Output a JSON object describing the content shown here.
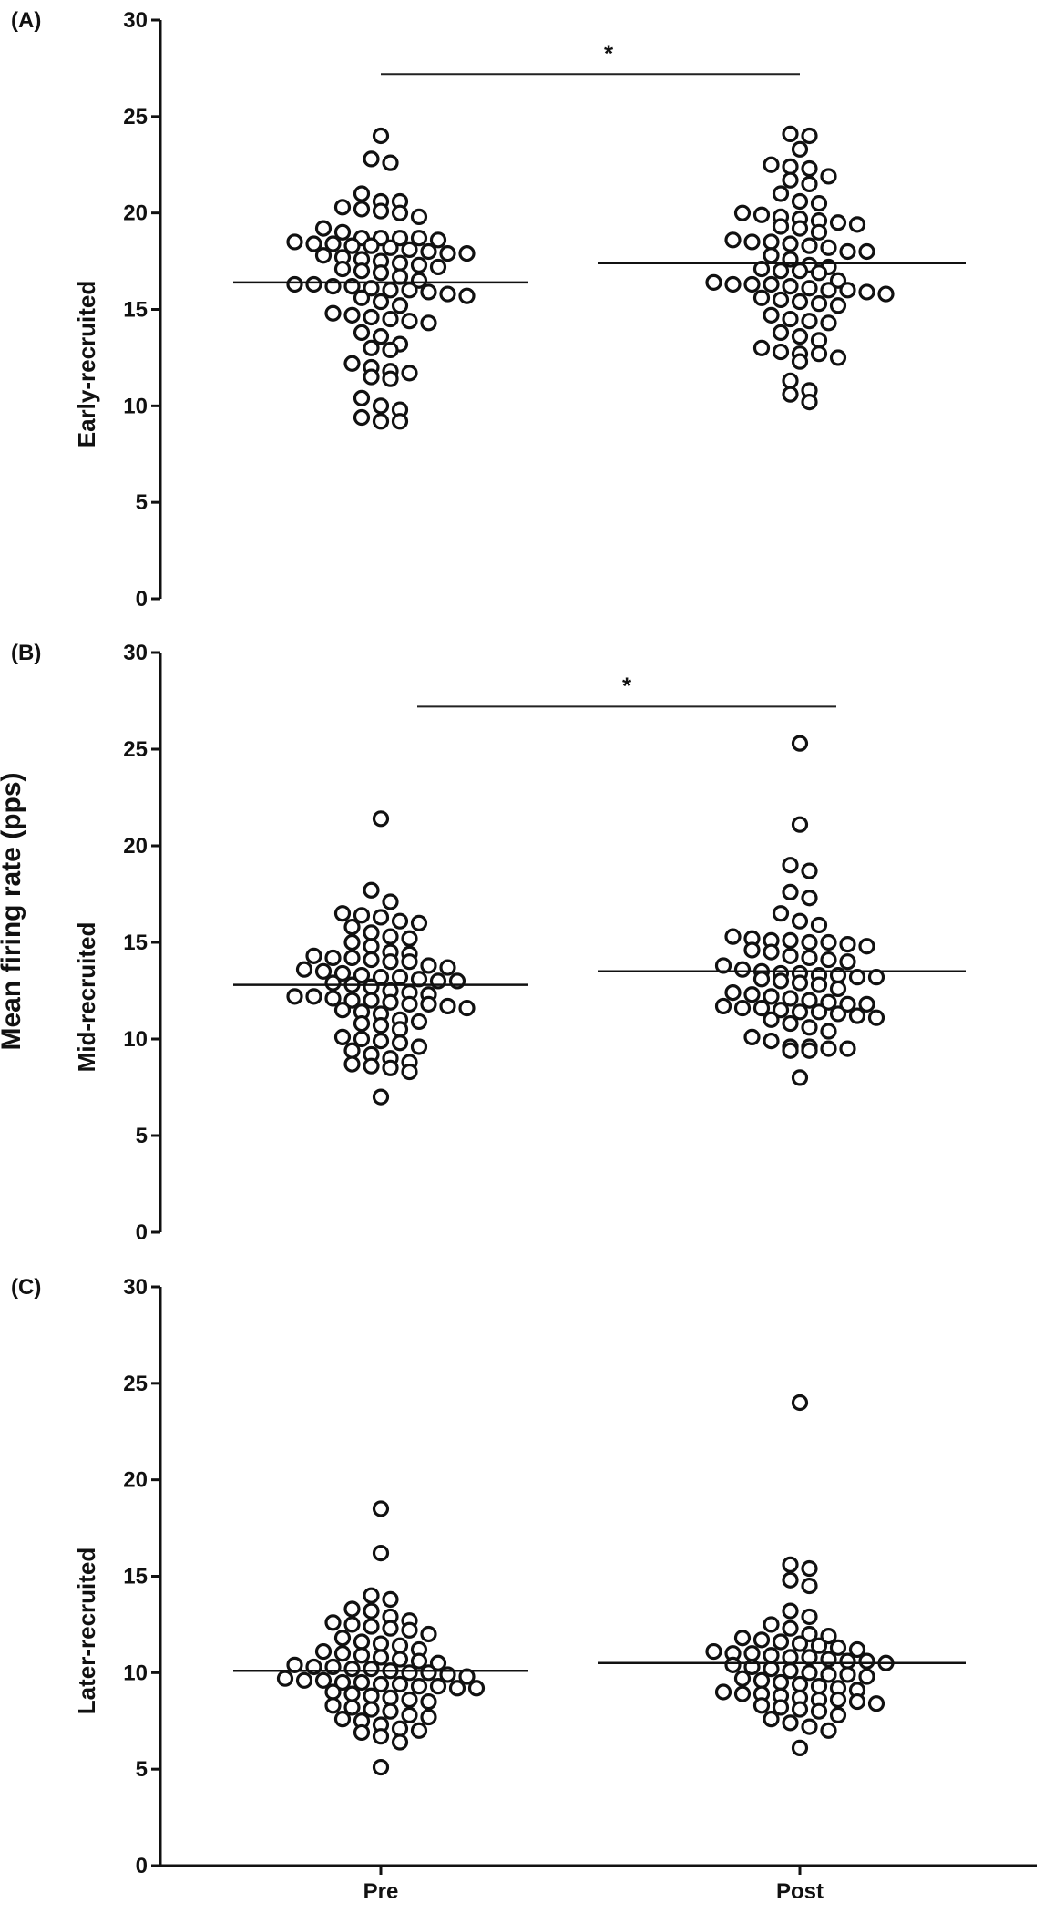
{
  "figure": {
    "shared_ylabel": "Mean firing rate (pps)"
  },
  "chart_data": [
    {
      "type": "scatter",
      "panel": "(A)",
      "ylabel": "Early-recruited",
      "categories": [
        "Pre",
        "Post"
      ],
      "ylim": [
        0,
        30
      ],
      "yticks": [
        0,
        5,
        10,
        15,
        20,
        25,
        30
      ],
      "grid": false,
      "means": [
        16.4,
        17.4
      ],
      "significance": {
        "from": "Pre",
        "to": "Post",
        "y": 27.2,
        "label": "*"
      },
      "series": [
        {
          "values": [
            24.0,
            22.8,
            22.6,
            21.0,
            20.6,
            20.6,
            20.3,
            20.2,
            20.1,
            20.0,
            19.8,
            19.2,
            19.0,
            18.7,
            18.7,
            18.7,
            18.7,
            18.6,
            18.5,
            18.4,
            18.4,
            18.3,
            18.3,
            18.2,
            18.1,
            18.0,
            17.9,
            17.9,
            17.8,
            17.7,
            17.6,
            17.5,
            17.4,
            17.3,
            17.2,
            17.1,
            17.0,
            16.9,
            16.7,
            16.5,
            16.3,
            16.3,
            16.2,
            16.2,
            16.1,
            16.0,
            16.0,
            15.9,
            15.8,
            15.7,
            15.6,
            15.4,
            15.2,
            14.8,
            14.7,
            14.6,
            14.5,
            14.4,
            14.3,
            13.8,
            13.6,
            13.2,
            13.0,
            12.9,
            12.2,
            12.0,
            11.8,
            11.7,
            11.5,
            11.4,
            10.4,
            10.0,
            9.8,
            9.4,
            9.2,
            9.2
          ]
        },
        {
          "values": [
            24.1,
            24.0,
            23.3,
            22.5,
            22.4,
            22.3,
            21.9,
            21.7,
            21.5,
            21.0,
            20.6,
            20.5,
            20.0,
            19.9,
            19.8,
            19.7,
            19.6,
            19.5,
            19.4,
            19.3,
            19.2,
            19.0,
            18.6,
            18.5,
            18.5,
            18.4,
            18.3,
            18.2,
            18.0,
            18.0,
            17.8,
            17.6,
            17.3,
            17.2,
            17.1,
            17.0,
            17.0,
            16.9,
            16.5,
            16.4,
            16.3,
            16.3,
            16.3,
            16.2,
            16.1,
            16.0,
            16.0,
            15.9,
            15.8,
            15.6,
            15.5,
            15.4,
            15.3,
            15.2,
            14.7,
            14.5,
            14.4,
            14.3,
            13.8,
            13.6,
            13.4,
            13.0,
            12.8,
            12.7,
            12.7,
            12.5,
            12.3,
            11.3,
            10.8,
            10.6,
            10.2
          ]
        }
      ]
    },
    {
      "type": "scatter",
      "panel": "(B)",
      "ylabel": "Mid-recruited",
      "categories": [
        "Pre",
        "Post"
      ],
      "ylim": [
        0,
        30
      ],
      "yticks": [
        0,
        5,
        10,
        15,
        20,
        25,
        30
      ],
      "grid": false,
      "means": [
        12.8,
        13.5
      ],
      "significance": {
        "from": "Pre",
        "to": "Post",
        "y": 27.2,
        "label": "*"
      },
      "series": [
        {
          "values": [
            21.4,
            17.7,
            17.1,
            16.5,
            16.4,
            16.3,
            16.1,
            16.0,
            15.8,
            15.5,
            15.3,
            15.2,
            15.0,
            14.8,
            14.5,
            14.4,
            14.3,
            14.2,
            14.2,
            14.1,
            14.0,
            14.0,
            13.8,
            13.7,
            13.6,
            13.5,
            13.4,
            13.3,
            13.2,
            13.2,
            13.1,
            13.0,
            13.0,
            12.9,
            12.8,
            12.7,
            12.5,
            12.4,
            12.3,
            12.2,
            12.2,
            12.1,
            12.0,
            12.0,
            11.9,
            11.8,
            11.8,
            11.7,
            11.6,
            11.5,
            11.4,
            11.3,
            11.0,
            10.9,
            10.8,
            10.7,
            10.5,
            10.1,
            10.0,
            9.9,
            9.8,
            9.6,
            9.4,
            9.2,
            9.0,
            8.8,
            8.7,
            8.6,
            8.5,
            8.3,
            7.0
          ]
        },
        {
          "values": [
            25.3,
            21.1,
            19.0,
            18.7,
            17.6,
            17.3,
            16.5,
            16.1,
            15.9,
            15.3,
            15.2,
            15.1,
            15.1,
            15.0,
            15.0,
            14.9,
            14.8,
            14.6,
            14.5,
            14.3,
            14.2,
            14.1,
            14.0,
            13.8,
            13.6,
            13.5,
            13.4,
            13.4,
            13.3,
            13.3,
            13.2,
            13.2,
            13.1,
            13.0,
            12.9,
            12.8,
            12.6,
            12.4,
            12.3,
            12.2,
            12.1,
            12.0,
            11.9,
            11.8,
            11.8,
            11.7,
            11.6,
            11.6,
            11.5,
            11.4,
            11.4,
            11.3,
            11.2,
            11.1,
            11.0,
            10.8,
            10.6,
            10.4,
            10.1,
            9.9,
            9.6,
            9.6,
            9.5,
            9.5,
            9.4,
            9.4,
            8.0
          ]
        }
      ]
    },
    {
      "type": "scatter",
      "panel": "(C)",
      "ylabel": "Later-recruited",
      "categories": [
        "Pre",
        "Post"
      ],
      "ylim": [
        0,
        30
      ],
      "yticks": [
        0,
        5,
        10,
        15,
        20,
        25,
        30
      ],
      "grid": false,
      "means": [
        10.1,
        10.5
      ],
      "significance": null,
      "series": [
        {
          "values": [
            18.5,
            16.2,
            14.0,
            13.8,
            13.3,
            13.2,
            12.9,
            12.7,
            12.6,
            12.5,
            12.4,
            12.3,
            12.2,
            12.0,
            11.8,
            11.6,
            11.5,
            11.4,
            11.2,
            11.1,
            11.0,
            10.9,
            10.8,
            10.7,
            10.6,
            10.5,
            10.4,
            10.3,
            10.3,
            10.2,
            10.2,
            10.1,
            10.0,
            10.0,
            9.9,
            9.8,
            9.7,
            9.6,
            9.6,
            9.5,
            9.5,
            9.4,
            9.4,
            9.3,
            9.3,
            9.2,
            9.2,
            9.0,
            8.9,
            8.8,
            8.7,
            8.6,
            8.5,
            8.3,
            8.2,
            8.1,
            8.0,
            7.8,
            7.7,
            7.6,
            7.5,
            7.3,
            7.1,
            7.0,
            6.9,
            6.7,
            6.4,
            5.1
          ]
        },
        {
          "values": [
            24.0,
            15.6,
            15.4,
            14.8,
            14.5,
            13.2,
            12.9,
            12.5,
            12.3,
            12.0,
            11.9,
            11.8,
            11.7,
            11.6,
            11.5,
            11.4,
            11.3,
            11.2,
            11.1,
            11.0,
            11.0,
            10.9,
            10.8,
            10.8,
            10.7,
            10.6,
            10.6,
            10.5,
            10.4,
            10.3,
            10.2,
            10.1,
            10.0,
            9.9,
            9.9,
            9.8,
            9.7,
            9.6,
            9.5,
            9.4,
            9.3,
            9.2,
            9.1,
            9.0,
            8.9,
            8.9,
            8.8,
            8.7,
            8.6,
            8.6,
            8.5,
            8.4,
            8.3,
            8.2,
            8.1,
            8.0,
            7.8,
            7.6,
            7.4,
            7.2,
            7.0,
            6.1
          ]
        }
      ]
    }
  ]
}
